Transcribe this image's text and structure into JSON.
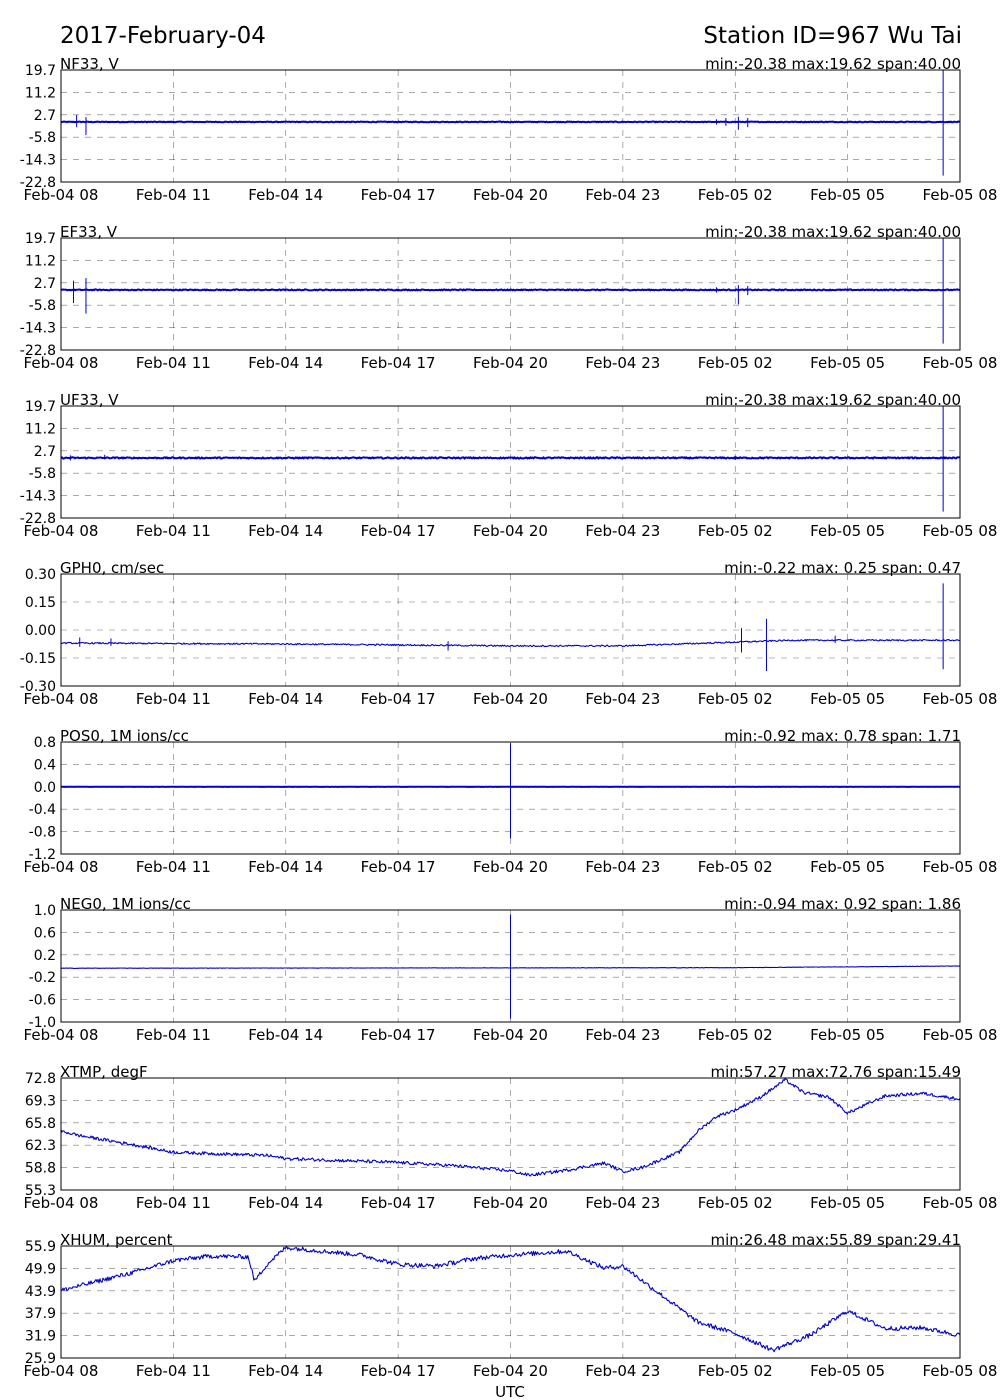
{
  "header": {
    "date": "2017-February-04",
    "station": "Station ID=967  Wu Tai"
  },
  "chart_data": {
    "type": "line",
    "shared_x": {
      "label": "UTC",
      "range": [
        "2017-02-04T08:00",
        "2017-02-05T08:00"
      ],
      "ticks": [
        "2017-02-04T08:00",
        "2017-02-04T11:00",
        "2017-02-04T14:00",
        "2017-02-04T17:00",
        "2017-02-04T20:00",
        "2017-02-04T23:00",
        "2017-02-05T02:00",
        "2017-02-05T05:00",
        "2017-02-05T08:00"
      ],
      "tick_labels": [
        "Feb-04 08",
        "Feb-04 11",
        "Feb-04 14",
        "Feb-04 17",
        "Feb-04 20",
        "Feb-04 23",
        "Feb-05 02",
        "Feb-05 05",
        "Feb-05 08"
      ]
    },
    "grid": true,
    "line_color": "#0000cc",
    "panels": [
      {
        "label": "NF33, V",
        "stats": "min:-20.38 max:19.62 span:40.00",
        "ylim": [
          -22.8,
          19.7
        ],
        "yticks": [
          "19.7",
          "11.2",
          "2.7",
          "-5.8",
          "-14.3",
          "-22.8"
        ],
        "baseline": 0,
        "noise": 0.15,
        "anchors": [],
        "spikes": [
          {
            "t": "2017-02-04T08:25",
            "lo": -2,
            "hi": 2.6
          },
          {
            "t": "2017-02-04T08:40",
            "lo": -5,
            "hi": 1.8
          },
          {
            "t": "2017-02-05T01:30",
            "lo": -1,
            "hi": 1
          },
          {
            "t": "2017-02-05T01:45",
            "lo": -1.5,
            "hi": 1.5
          },
          {
            "t": "2017-02-05T02:05",
            "lo": -3,
            "hi": 2
          },
          {
            "t": "2017-02-05T02:20",
            "lo": -2,
            "hi": 1.5
          },
          {
            "t": "2017-02-05T07:33",
            "lo": -20.38,
            "hi": 19.62
          }
        ]
      },
      {
        "label": "EF33, V",
        "stats": "min:-20.38 max:19.62 span:40.00",
        "ylim": [
          -22.8,
          19.7
        ],
        "yticks": [
          "19.7",
          "11.2",
          "2.7",
          "-5.8",
          "-14.3",
          "-22.8"
        ],
        "baseline": 0,
        "noise": 0.2,
        "anchors": [],
        "spikes": [
          {
            "t": "2017-02-04T08:20",
            "lo": -5,
            "hi": 3.5
          },
          {
            "t": "2017-02-04T08:40",
            "lo": -9,
            "hi": 4.5
          },
          {
            "t": "2017-02-05T01:30",
            "lo": -1,
            "hi": 1
          },
          {
            "t": "2017-02-05T02:05",
            "lo": -5.5,
            "hi": 1.8
          },
          {
            "t": "2017-02-05T02:20",
            "lo": -2,
            "hi": 1.5
          },
          {
            "t": "2017-02-05T07:33",
            "lo": -20.38,
            "hi": 19.62
          }
        ]
      },
      {
        "label": "UF33, V",
        "stats": "min:-20.38 max:19.62 span:40.00",
        "ylim": [
          -22.8,
          19.7
        ],
        "yticks": [
          "19.7",
          "11.2",
          "2.7",
          "-5.8",
          "-14.3",
          "-22.8"
        ],
        "baseline": 0,
        "noise": 0.25,
        "anchors": [],
        "spikes": [
          {
            "t": "2017-02-04T08:15",
            "lo": -1,
            "hi": 1
          },
          {
            "t": "2017-02-04T09:10",
            "lo": -0.5,
            "hi": 1.2
          },
          {
            "t": "2017-02-05T02:00",
            "lo": -0.8,
            "hi": 0.8
          },
          {
            "t": "2017-02-05T07:33",
            "lo": -20.38,
            "hi": 19.62
          }
        ]
      },
      {
        "label": "GPH0, cm/sec",
        "stats": "min:-0.22 max: 0.25 span: 0.47",
        "ylim": [
          -0.3,
          0.3
        ],
        "yticks": [
          "0.30",
          "0.15",
          "0.00",
          "-0.15",
          "-0.30"
        ],
        "baseline": null,
        "noise": 0.004,
        "anchors": [
          {
            "t": "2017-02-04T08:00",
            "v": -0.07
          },
          {
            "t": "2017-02-04T14:00",
            "v": -0.075
          },
          {
            "t": "2017-02-04T20:00",
            "v": -0.085
          },
          {
            "t": "2017-02-04T23:00",
            "v": -0.085
          },
          {
            "t": "2017-02-05T02:00",
            "v": -0.065
          },
          {
            "t": "2017-02-05T03:30",
            "v": -0.055
          },
          {
            "t": "2017-02-05T08:00",
            "v": -0.055
          }
        ],
        "spikes": [
          {
            "t": "2017-02-04T08:30",
            "lo": -0.09,
            "hi": -0.04
          },
          {
            "t": "2017-02-04T09:20",
            "lo": -0.085,
            "hi": -0.045
          },
          {
            "t": "2017-02-04T18:20",
            "lo": -0.11,
            "hi": -0.06
          },
          {
            "t": "2017-02-05T02:10",
            "lo": -0.12,
            "hi": 0.01
          },
          {
            "t": "2017-02-05T02:50",
            "lo": -0.22,
            "hi": 0.06
          },
          {
            "t": "2017-02-05T04:40",
            "lo": -0.07,
            "hi": -0.03
          },
          {
            "t": "2017-02-05T07:33",
            "lo": -0.21,
            "hi": 0.25
          }
        ]
      },
      {
        "label": "POS0, 1M ions/cc",
        "stats": "min:-0.92 max: 0.78 span: 1.71",
        "ylim": [
          -1.2,
          0.8
        ],
        "yticks": [
          "0.8",
          "0.4",
          "0.0",
          "-0.4",
          "-0.8",
          "-1.2"
        ],
        "baseline": 0,
        "noise": 0.002,
        "anchors": [],
        "spikes": [
          {
            "t": "2017-02-04T20:00",
            "lo": -0.92,
            "hi": 0.78
          }
        ]
      },
      {
        "label": "NEG0, 1M ions/cc",
        "stats": "min:-0.94 max: 0.92 span: 1.86",
        "ylim": [
          -1.0,
          1.0
        ],
        "yticks": [
          "1.0",
          "0.6",
          "0.2",
          "-0.2",
          "-0.6",
          "-1.0"
        ],
        "baseline": null,
        "noise": 0.003,
        "anchors": [
          {
            "t": "2017-02-04T08:00",
            "v": -0.04
          },
          {
            "t": "2017-02-05T02:00",
            "v": -0.03
          },
          {
            "t": "2017-02-05T08:00",
            "v": 0.0
          }
        ],
        "spikes": [
          {
            "t": "2017-02-04T20:00",
            "lo": -0.94,
            "hi": 0.92
          }
        ]
      },
      {
        "label": "XTMP, degF",
        "stats": "min:57.27 max:72.76 span:15.49",
        "ylim": [
          55.3,
          72.8
        ],
        "yticks": [
          "72.8",
          "69.3",
          "65.8",
          "62.3",
          "58.8",
          "55.3"
        ],
        "baseline": null,
        "noise": 0.25,
        "anchors": [
          {
            "t": "2017-02-04T08:00",
            "v": 64.5
          },
          {
            "t": "2017-02-04T08:30",
            "v": 63.8
          },
          {
            "t": "2017-02-04T10:00",
            "v": 62.3
          },
          {
            "t": "2017-02-04T11:00",
            "v": 61.2
          },
          {
            "t": "2017-02-04T13:30",
            "v": 60.7
          },
          {
            "t": "2017-02-04T14:00",
            "v": 60.2
          },
          {
            "t": "2017-02-04T17:00",
            "v": 59.6
          },
          {
            "t": "2017-02-04T18:30",
            "v": 59.1
          },
          {
            "t": "2017-02-04T20:00",
            "v": 58.3
          },
          {
            "t": "2017-02-04T20:30",
            "v": 57.6
          },
          {
            "t": "2017-02-04T21:30",
            "v": 58.4
          },
          {
            "t": "2017-02-04T22:30",
            "v": 59.5
          },
          {
            "t": "2017-02-04T23:00",
            "v": 58.2
          },
          {
            "t": "2017-02-04T23:30",
            "v": 58.8
          },
          {
            "t": "2017-02-05T00:30",
            "v": 61.2
          },
          {
            "t": "2017-02-05T01:00",
            "v": 64.5
          },
          {
            "t": "2017-02-05T01:30",
            "v": 66.8
          },
          {
            "t": "2017-02-05T02:00",
            "v": 67.8
          },
          {
            "t": "2017-02-05T02:40",
            "v": 69.8
          },
          {
            "t": "2017-02-05T03:20",
            "v": 72.5
          },
          {
            "t": "2017-02-05T03:50",
            "v": 70.5
          },
          {
            "t": "2017-02-05T04:30",
            "v": 69.8
          },
          {
            "t": "2017-02-05T05:00",
            "v": 67.3
          },
          {
            "t": "2017-02-05T06:00",
            "v": 70.0
          },
          {
            "t": "2017-02-05T07:00",
            "v": 70.4
          },
          {
            "t": "2017-02-05T08:00",
            "v": 69.5
          }
        ],
        "spikes": []
      },
      {
        "label": "XHUM, percent",
        "stats": "min:26.48 max:55.89 span:29.41",
        "ylim": [
          25.9,
          55.9
        ],
        "yticks": [
          "55.9",
          "49.9",
          "43.9",
          "37.9",
          "31.9",
          "25.9"
        ],
        "baseline": null,
        "noise": 0.6,
        "anchors": [
          {
            "t": "2017-02-04T08:00",
            "v": 44.0
          },
          {
            "t": "2017-02-04T09:00",
            "v": 46.5
          },
          {
            "t": "2017-02-04T10:00",
            "v": 49.0
          },
          {
            "t": "2017-02-04T11:00",
            "v": 52.0
          },
          {
            "t": "2017-02-04T12:00",
            "v": 53.2
          },
          {
            "t": "2017-02-04T13:00",
            "v": 53.0
          },
          {
            "t": "2017-02-04T13:10",
            "v": 46.5
          },
          {
            "t": "2017-02-04T13:30",
            "v": 51.0
          },
          {
            "t": "2017-02-04T14:00",
            "v": 55.5
          },
          {
            "t": "2017-02-04T16:00",
            "v": 53.5
          },
          {
            "t": "2017-02-04T17:00",
            "v": 51.0
          },
          {
            "t": "2017-02-04T18:00",
            "v": 50.5
          },
          {
            "t": "2017-02-04T19:00",
            "v": 52.5
          },
          {
            "t": "2017-02-04T20:00",
            "v": 53.5
          },
          {
            "t": "2017-02-04T21:30",
            "v": 54.5
          },
          {
            "t": "2017-02-04T22:30",
            "v": 50.0
          },
          {
            "t": "2017-02-04T23:00",
            "v": 50.5
          },
          {
            "t": "2017-02-05T00:00",
            "v": 43.0
          },
          {
            "t": "2017-02-05T01:00",
            "v": 35.5
          },
          {
            "t": "2017-02-05T02:00",
            "v": 32.5
          },
          {
            "t": "2017-02-05T03:00",
            "v": 28.0
          },
          {
            "t": "2017-02-05T04:00",
            "v": 32.0
          },
          {
            "t": "2017-02-05T05:00",
            "v": 38.5
          },
          {
            "t": "2017-02-05T06:00",
            "v": 33.8
          },
          {
            "t": "2017-02-05T07:00",
            "v": 34.0
          },
          {
            "t": "2017-02-05T08:00",
            "v": 32.0
          }
        ],
        "spikes": []
      }
    ]
  }
}
